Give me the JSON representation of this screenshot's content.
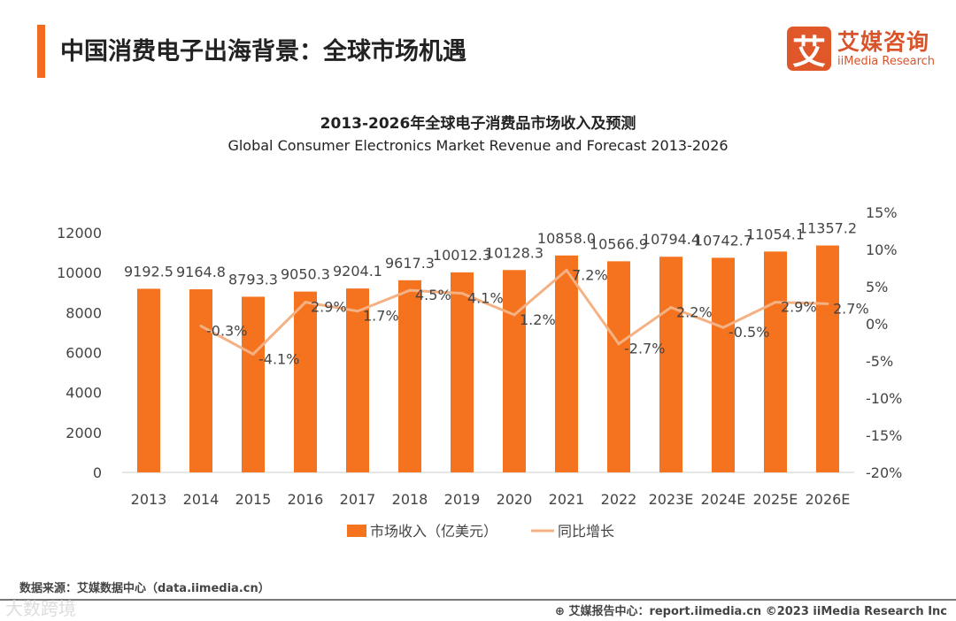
{
  "header": {
    "title": "中国消费电子出海背景：全球市场机遇"
  },
  "logo": {
    "mark": "艾",
    "name_cn": "艾媒咨询",
    "name_en": "iiMedia Research"
  },
  "chart_data": {
    "type": "bar+line",
    "title": "2013-2026年全球电子消费品市场收入及预测",
    "subtitle": "Global Consumer Electronics Market Revenue and Forecast 2013-2026",
    "categories": [
      "2013",
      "2014",
      "2015",
      "2016",
      "2017",
      "2018",
      "2019",
      "2020",
      "2021",
      "2022",
      "2023E",
      "2024E",
      "2025E",
      "2026E"
    ],
    "series": [
      {
        "name": "市场收入（亿美元）",
        "type": "bar",
        "axis": "left",
        "color": "#F5731F",
        "values": [
          9192.5,
          9164.8,
          8793.3,
          9050.3,
          9204.1,
          9617.3,
          10012.3,
          10128.3,
          10858.0,
          10566.9,
          10794.4,
          10742.7,
          11054.1,
          11357.2
        ],
        "labels": [
          "9192.5",
          "9164.8",
          "8793.3",
          "9050.3",
          "9204.1",
          "9617.3",
          "10012.3",
          "10128.3",
          "10858.0",
          "10566.9",
          "10794.4",
          "10742.7",
          "11054.1",
          "11357.2"
        ]
      },
      {
        "name": "同比增长",
        "type": "line",
        "axis": "right",
        "color": "#F4B183",
        "values": [
          null,
          -0.3,
          -4.1,
          2.9,
          1.7,
          4.5,
          4.1,
          1.2,
          7.2,
          -2.7,
          2.2,
          -0.5,
          2.9,
          2.7
        ],
        "labels": [
          "",
          "-0.3%",
          "-4.1%",
          "2.9%",
          "1.7%",
          "4.5%",
          "4.1%",
          "1.2%",
          "7.2%",
          "-2.7%",
          "2.2%",
          "-0.5%",
          "2.9%",
          "2.7%"
        ]
      }
    ],
    "yleft": {
      "ylim": [
        0,
        12000
      ],
      "ticks": [
        "0",
        "2000",
        "4000",
        "6000",
        "8000",
        "10000",
        "12000"
      ]
    },
    "yright": {
      "ylim": [
        -20,
        15
      ],
      "ticks": [
        "-20%",
        "-15%",
        "-10%",
        "-5%",
        "0%",
        "5%",
        "10%",
        "15%"
      ]
    },
    "legend": "bottom",
    "grid": false
  },
  "footer": {
    "source": "数据来源：艾媒数据中心（data.iimedia.cn）",
    "watermark": "大数跨境",
    "report": "艾媒报告中心：report.iimedia.cn ©2023 iiMedia Research Inc"
  }
}
